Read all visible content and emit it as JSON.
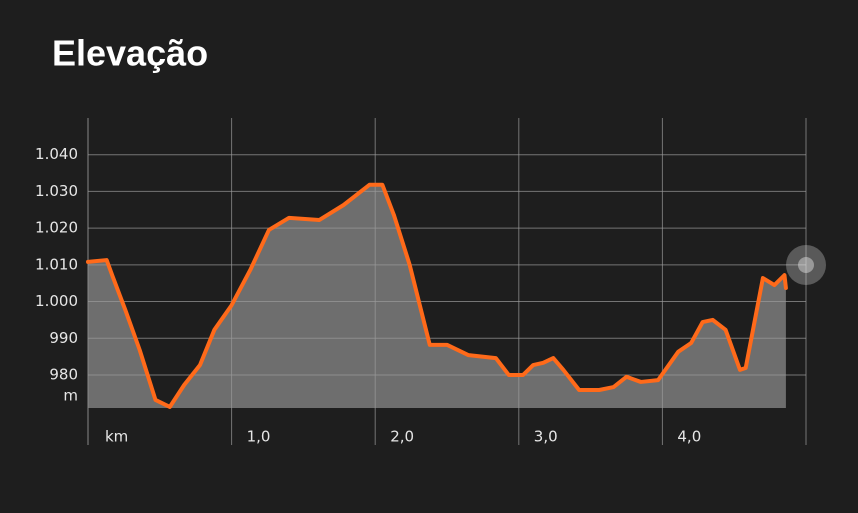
{
  "chart_data": {
    "type": "area",
    "title": "Elevação",
    "x_label": "km",
    "y_label": "m",
    "x": [
      0,
      0.13,
      0.17,
      0.26,
      0.36,
      0.47,
      0.57,
      0.67,
      0.78,
      0.88,
      1.0,
      1.13,
      1.26,
      1.4,
      1.61,
      1.78,
      1.96,
      2.05,
      2.13,
      2.24,
      2.38,
      2.5,
      2.65,
      2.84,
      2.93,
      3.03,
      3.1,
      3.17,
      3.24,
      3.31,
      3.42,
      3.56,
      3.66,
      3.75,
      3.85,
      3.97,
      4.11,
      4.2,
      4.28,
      4.35,
      4.44,
      4.54,
      4.58,
      4.7,
      4.78,
      4.85,
      4.86
    ],
    "values": [
      1010.8,
      1011.3,
      1007,
      997.7,
      986.8,
      973.2,
      971.3,
      977.3,
      982.7,
      992.3,
      999,
      1008.6,
      1019.5,
      1022.8,
      1022.2,
      1026.3,
      1031.8,
      1031.8,
      1023.6,
      1010,
      988.2,
      988.2,
      985.4,
      984.6,
      980,
      980,
      982.7,
      983.3,
      984.6,
      981.4,
      975.9,
      975.9,
      976.7,
      979.5,
      978.1,
      978.6,
      986.3,
      988.7,
      994.4,
      995,
      992.3,
      981.4,
      981.9,
      1006.4,
      1004.5,
      1007.2,
      1003.7
    ],
    "color": "#ff6a1a",
    "area_color": "#8a8a8a",
    "xlim": [
      0,
      5
    ],
    "ylim": [
      971,
      1050
    ],
    "xticks": [
      {
        "value": 1,
        "label": "1,0"
      },
      {
        "value": 2,
        "label": "2,0"
      },
      {
        "value": 3,
        "label": "3,0"
      },
      {
        "value": 4,
        "label": "4,0"
      }
    ],
    "yticks": [
      980,
      990,
      {
        "value": 1000,
        "label": "1.000"
      },
      {
        "value": 1010,
        "label": "1.010"
      },
      {
        "value": 1020,
        "label": "1.020"
      },
      {
        "value": 1030,
        "label": "1.030"
      },
      {
        "value": 1040,
        "label": "1.040"
      }
    ],
    "grid": true
  }
}
